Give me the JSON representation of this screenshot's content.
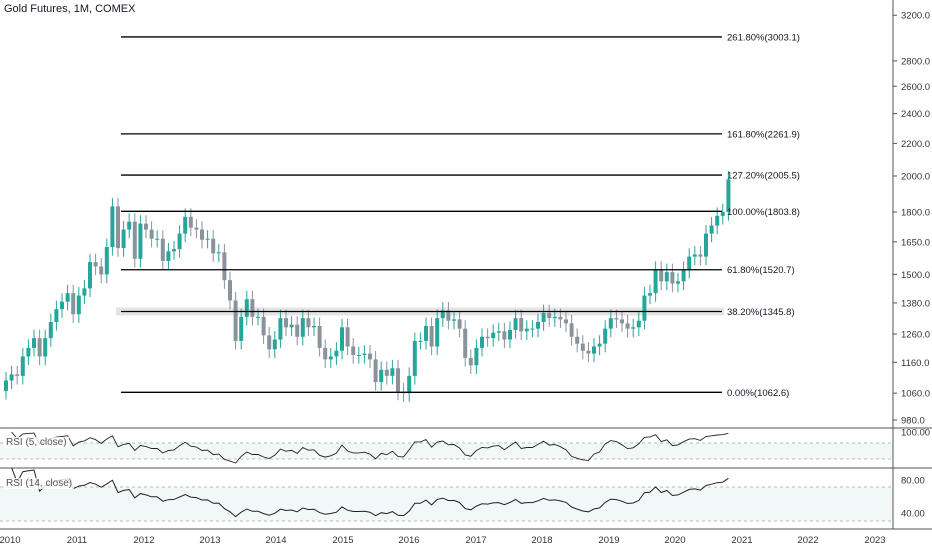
{
  "header": {
    "title": "Gold Futures, 1M, COMEX"
  },
  "indicators": [
    {
      "label": "RSI (5, close)",
      "ticks": [
        "100.00"
      ]
    },
    {
      "label": "RSI (14, close)",
      "ticks": [
        "80.00",
        "40.00"
      ]
    }
  ],
  "colors": {
    "up": "#26a69a",
    "down": "#8a929c",
    "line": "#000000",
    "rsi": "#222222",
    "band": "#f2f8f7",
    "zone": "#d9d9d9"
  },
  "chart_data": {
    "type": "candlestick",
    "title": "Gold Futures, 1M, COMEX",
    "x_ticks": [
      "2010",
      "2011",
      "2012",
      "2013",
      "2014",
      "2015",
      "2016",
      "2017",
      "2018",
      "2019",
      "2020",
      "2021",
      "2022",
      "2023"
    ],
    "y_ticks": [
      "980.0",
      "1060.0",
      "1160.0",
      "1260.0",
      "1380.0",
      "1500.0",
      "1650.0",
      "1800.0",
      "2000.0",
      "2200.0",
      "2400.0",
      "2600.0",
      "2800.0",
      "3200.0"
    ],
    "y_scale": "log",
    "ylim": [
      930,
      3300
    ],
    "fib_levels": [
      {
        "label": "261.80%(3003.1)",
        "value": 3003.1
      },
      {
        "label": "161.80%(2261.9)",
        "value": 2261.9
      },
      {
        "label": "127.20%(2005.5)",
        "value": 2005.5
      },
      {
        "label": "100.00%(1803.8)",
        "value": 1803.8
      },
      {
        "label": "61.80%(1520.7)",
        "value": 1520.7
      },
      {
        "label": "38.20%(1345.8)",
        "value": 1345.8
      },
      {
        "label": "0.00%(1062.6)",
        "value": 1062.6
      }
    ],
    "monthly_close": [
      1100,
      1120,
      1115,
      1180,
      1210,
      1245,
      1180,
      1245,
      1305,
      1355,
      1385,
      1420,
      1335,
      1410,
      1440,
      1555,
      1535,
      1500,
      1625,
      1830,
      1620,
      1710,
      1750,
      1570,
      1740,
      1710,
      1665,
      1665,
      1560,
      1605,
      1615,
      1690,
      1775,
      1720,
      1710,
      1660,
      1665,
      1595,
      1600,
      1475,
      1390,
      1235,
      1325,
      1395,
      1325,
      1325,
      1255,
      1205,
      1240,
      1320,
      1285,
      1295,
      1250,
      1320,
      1285,
      1290,
      1210,
      1170,
      1180,
      1200,
      1285,
      1215,
      1185,
      1185,
      1190,
      1170,
      1095,
      1135,
      1115,
      1140,
      1065,
      1060,
      1115,
      1235,
      1235,
      1290,
      1215,
      1320,
      1350,
      1310,
      1315,
      1280,
      1175,
      1150,
      1210,
      1250,
      1245,
      1265,
      1270,
      1240,
      1275,
      1320,
      1270,
      1280,
      1280,
      1305,
      1340,
      1320,
      1325,
      1315,
      1300,
      1250,
      1225,
      1200,
      1190,
      1215,
      1225,
      1280,
      1320,
      1315,
      1300,
      1280,
      1285,
      1310,
      1410,
      1420,
      1520,
      1470,
      1510,
      1460,
      1470,
      1520,
      1580,
      1590,
      1580,
      1690,
      1730,
      1780,
      1800,
      1980
    ]
  }
}
